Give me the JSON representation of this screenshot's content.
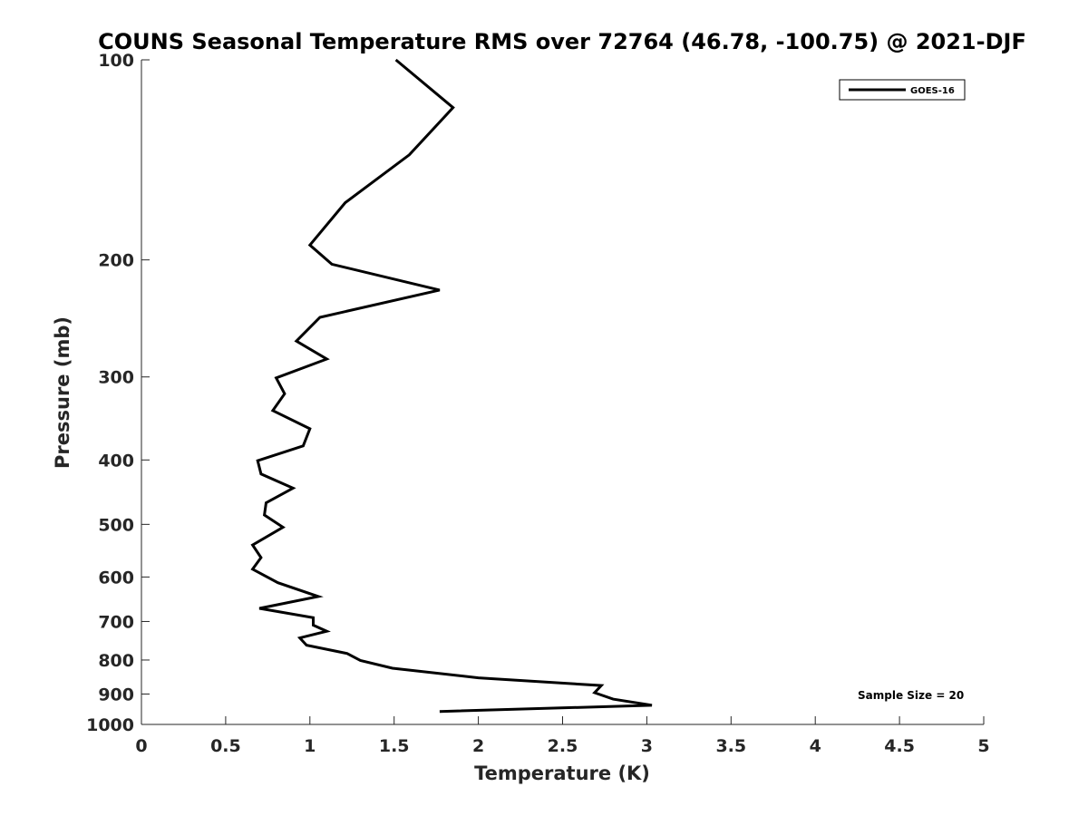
{
  "chart_data": {
    "type": "line",
    "title": "COUNS Seasonal Temperature RMS over 72764 (46.78, -100.75) @ 2021-DJF",
    "xlabel": "Temperature (K)",
    "ylabel": "Pressure (mb)",
    "xlim": [
      0,
      5
    ],
    "ylim": [
      100,
      1000
    ],
    "yscale": "log",
    "yreversed": true,
    "xticks": [
      0,
      0.5,
      1,
      1.5,
      2,
      2.5,
      3,
      3.5,
      4,
      4.5,
      5
    ],
    "xtick_labels": [
      "0",
      "0.5",
      "1",
      "1.5",
      "2",
      "2.5",
      "3",
      "3.5",
      "4",
      "4.5",
      "5"
    ],
    "yticks": [
      100,
      200,
      300,
      400,
      500,
      600,
      700,
      800,
      900,
      1000
    ],
    "ytick_labels": [
      "100",
      "200",
      "300",
      "400",
      "500",
      "600",
      "700",
      "800",
      "900",
      "1000"
    ],
    "grid": false,
    "legend_position": "top-right",
    "series": [
      {
        "name": "GOES-16",
        "color": "#000000",
        "x": [
          1.51,
          1.85,
          1.59,
          1.21,
          1.0,
          1.13,
          1.77,
          1.06,
          0.92,
          1.1,
          0.8,
          0.85,
          0.78,
          1.0,
          0.96,
          0.69,
          0.71,
          0.9,
          0.74,
          0.73,
          0.84,
          0.66,
          0.71,
          0.66,
          0.81,
          1.05,
          0.7,
          1.02,
          1.02,
          1.1,
          0.94,
          0.98,
          1.22,
          1.3,
          1.49,
          2.0,
          2.73,
          2.69,
          2.8,
          3.03,
          1.77
        ],
        "y": [
          100,
          118,
          139,
          164,
          190,
          203,
          222,
          244,
          265,
          282,
          301,
          318,
          337,
          359,
          381,
          401,
          420,
          441,
          464,
          484,
          505,
          537,
          561,
          584,
          612,
          642,
          669,
          691,
          709,
          724,
          741,
          760,
          782,
          801,
          823,
          851,
          874,
          896,
          916,
          936,
          956
        ]
      }
    ],
    "annotations": [
      "Sample Size = 20"
    ]
  }
}
